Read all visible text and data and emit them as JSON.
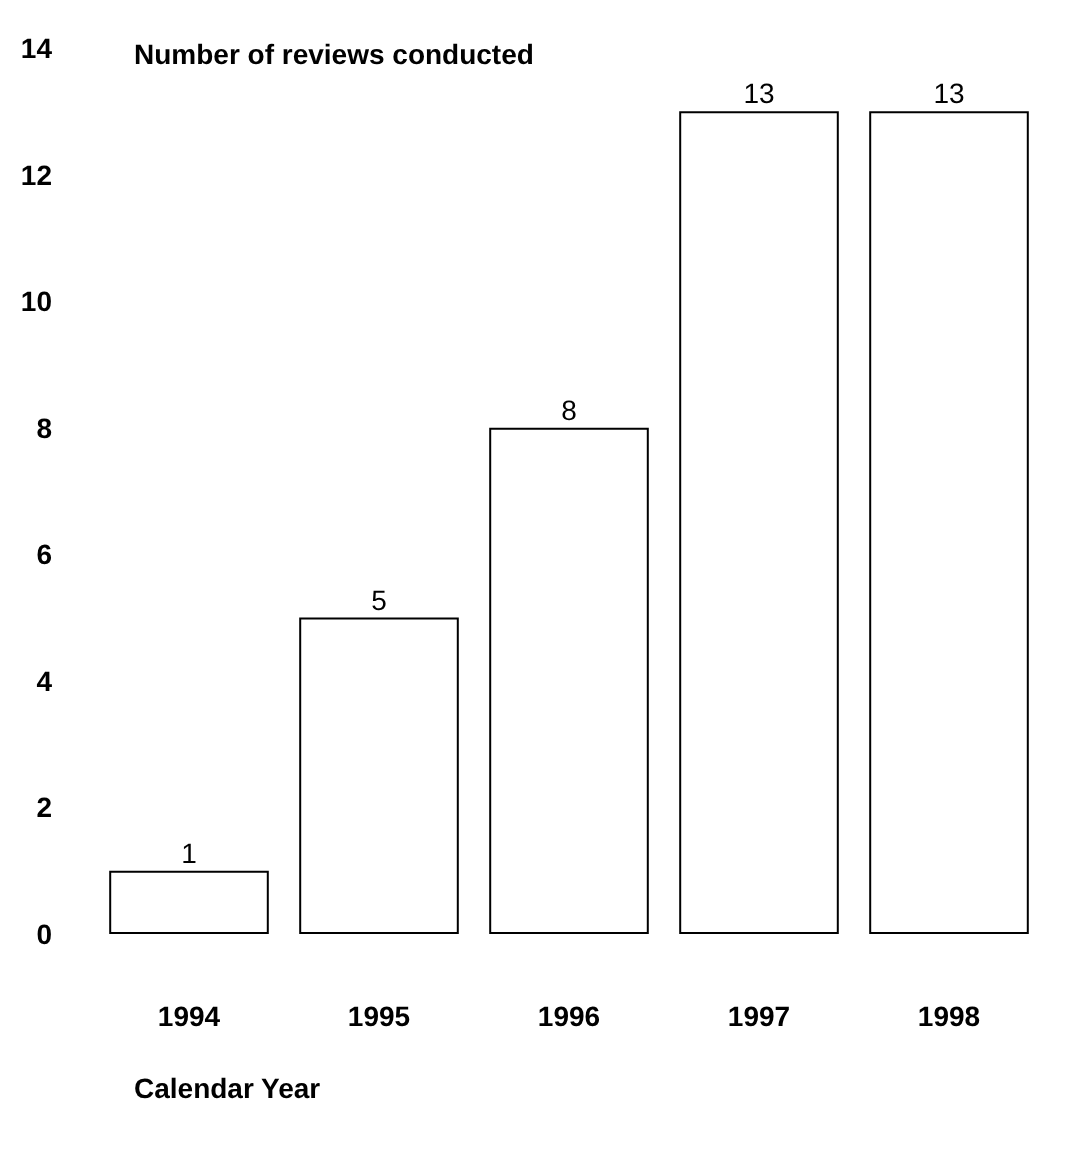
{
  "chart_data": {
    "type": "bar",
    "title": "Number of reviews conducted",
    "xlabel": "Calendar Year",
    "categories": [
      "1994",
      "1995",
      "1996",
      "1997",
      "1998"
    ],
    "values": [
      1,
      5,
      8,
      13,
      13
    ],
    "color": "#ffffff",
    "ylim": [
      0,
      14
    ],
    "yticks": [
      0,
      2,
      4,
      6,
      8,
      10,
      12,
      14
    ],
    "grid": false,
    "data_labels": true
  }
}
